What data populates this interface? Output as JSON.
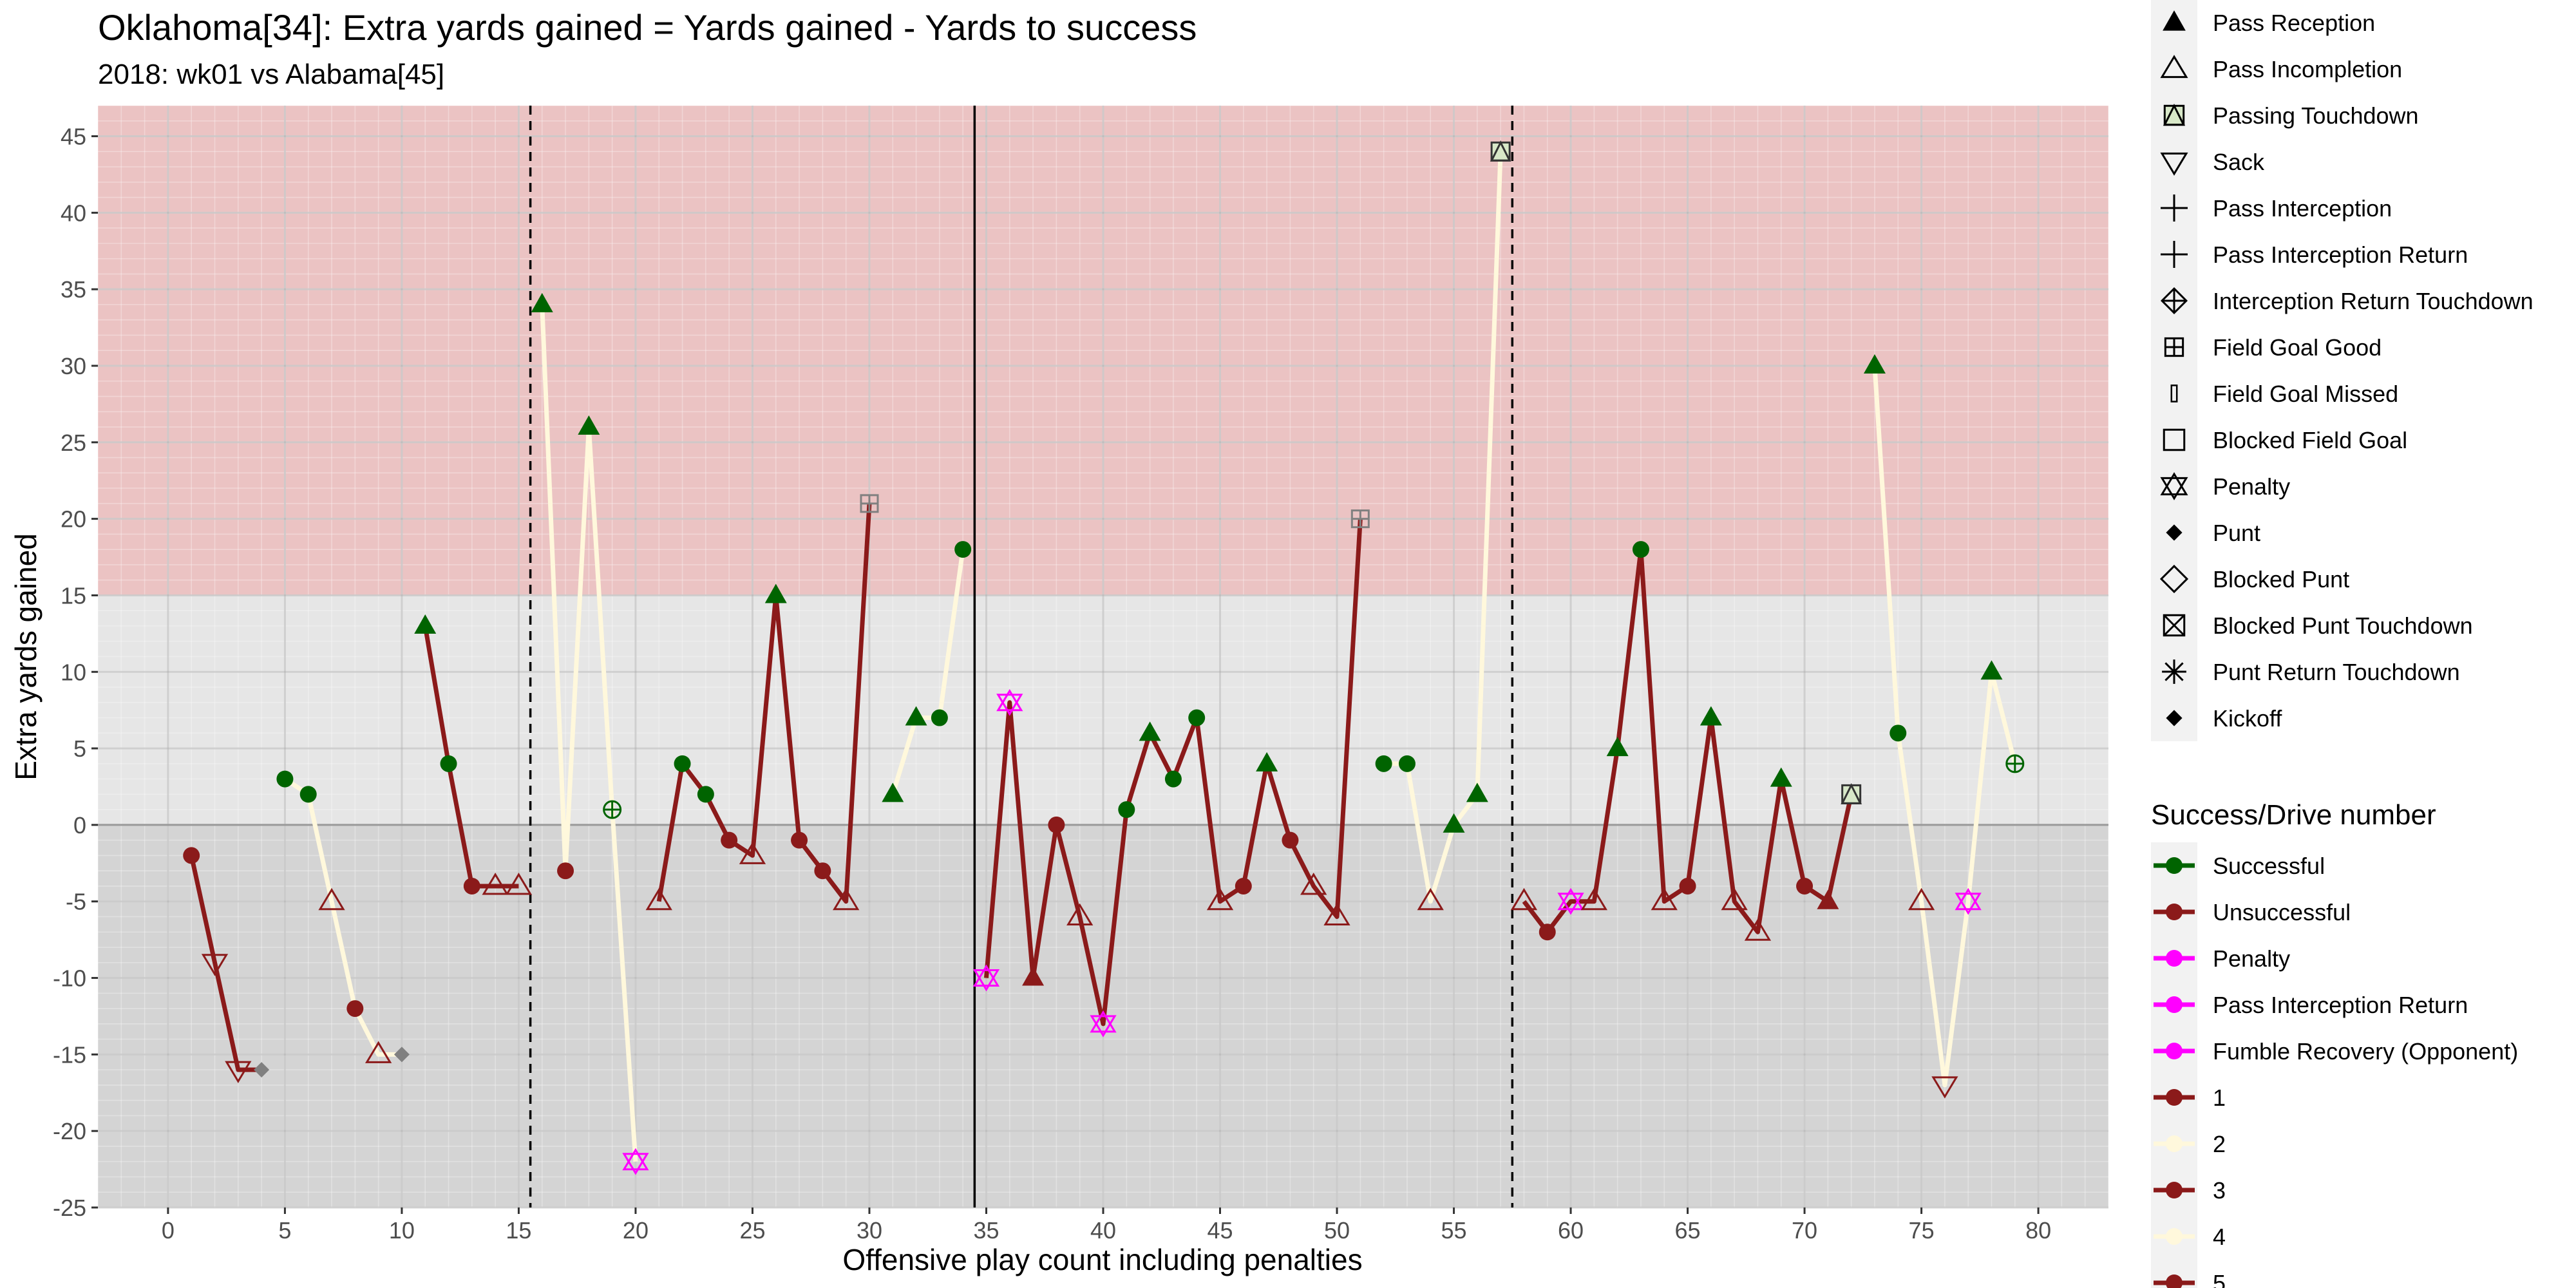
{
  "chart_data": {
    "type": "scatter",
    "title": "Oklahoma[34]: Extra yards gained = Yards gained - Yards to success",
    "subtitle": "2018: wk01 vs Alabama[45]",
    "xlabel": "Offensive play count including penalties",
    "ylabel": "Extra yards gained",
    "xlim": [
      -3,
      83
    ],
    "ylim": [
      -25,
      47
    ],
    "x_ticks": [
      0,
      5,
      10,
      15,
      20,
      25,
      30,
      35,
      40,
      45,
      50,
      55,
      60,
      65,
      70,
      75,
      80
    ],
    "y_ticks": [
      -25,
      -20,
      -15,
      -10,
      -5,
      0,
      5,
      10,
      15,
      20,
      25,
      30,
      35,
      40,
      45
    ],
    "bands": [
      {
        "from": 15,
        "to": 47,
        "color": "#ebc3c3"
      },
      {
        "from": 0,
        "to": 15,
        "color": "#e6e6e6"
      },
      {
        "from": -25,
        "to": 0,
        "color": "#d4d4d4"
      }
    ],
    "vlines": [
      {
        "x": 15.5,
        "style": "dashed"
      },
      {
        "x": 34.5,
        "style": "solid"
      },
      {
        "x": 57.5,
        "style": "dashed"
      }
    ],
    "drive_colors": {
      "odd": "#8b1a1a",
      "even": "#fff8dc"
    },
    "outcome_colors": {
      "Successful": "#006400",
      "Unsuccessful": "#8b1a1a",
      "Penalty": "#ff00ff",
      "Neutral": "#808080"
    },
    "drives": [
      {
        "drive": 1,
        "points": [
          [
            1,
            -2,
            "point",
            "Unsuccessful"
          ],
          [
            2,
            -9,
            "sack",
            "Unsuccessful"
          ],
          [
            3,
            -16,
            "sack",
            "Unsuccessful"
          ],
          [
            4,
            -16,
            "kickoff",
            "Neutral"
          ]
        ]
      },
      {
        "drive": 2,
        "points": [
          [
            5,
            3,
            "point",
            "Successful"
          ],
          [
            6,
            2,
            "point",
            "Successful"
          ],
          [
            7,
            -5,
            "pass_incompletion",
            "Unsuccessful"
          ],
          [
            8,
            -12,
            "point",
            "Unsuccessful"
          ],
          [
            9,
            -15,
            "pass_incompletion",
            "Unsuccessful"
          ],
          [
            10,
            -15,
            "kickoff",
            "Neutral"
          ]
        ]
      },
      {
        "drive": 3,
        "points": [
          [
            11,
            13,
            "pass_reception",
            "Successful"
          ],
          [
            12,
            4,
            "point",
            "Successful"
          ],
          [
            13,
            -4,
            "point",
            "Unsuccessful"
          ],
          [
            14,
            -4,
            "pass_incompletion",
            "Unsuccessful"
          ],
          [
            15,
            -4,
            "pass_incompletion",
            "Unsuccessful"
          ]
        ]
      },
      {
        "drive": 4,
        "points": [
          [
            16,
            34,
            "pass_reception",
            "Successful"
          ],
          [
            17,
            -3,
            "point",
            "Unsuccessful"
          ],
          [
            18,
            26,
            "pass_reception",
            "Successful"
          ],
          [
            19,
            1,
            "interception_return_td",
            "Successful"
          ],
          [
            20,
            -22,
            "penalty",
            "Penalty"
          ]
        ]
      },
      {
        "drive": 5,
        "points": [
          [
            21,
            -5,
            "pass_incompletion",
            "Unsuccessful"
          ],
          [
            22,
            4,
            "point",
            "Successful"
          ],
          [
            23,
            2,
            "point",
            "Successful"
          ],
          [
            24,
            -1,
            "point",
            "Unsuccessful"
          ],
          [
            25,
            -2,
            "pass_incompletion",
            "Unsuccessful"
          ],
          [
            26,
            15,
            "pass_reception",
            "Successful"
          ],
          [
            27,
            -1,
            "point",
            "Unsuccessful"
          ],
          [
            28,
            -3,
            "point",
            "Unsuccessful"
          ],
          [
            29,
            -5,
            "pass_incompletion",
            "Unsuccessful"
          ],
          [
            30,
            21,
            "field_goal_good",
            "Neutral"
          ]
        ]
      },
      {
        "drive": 6,
        "points": [
          [
            31,
            2,
            "pass_reception",
            "Successful"
          ],
          [
            32,
            7,
            "pass_reception",
            "Successful"
          ],
          [
            33,
            7,
            "point",
            "Successful"
          ],
          [
            34,
            18,
            "point",
            "Successful"
          ]
        ]
      },
      {
        "drive": 7,
        "points": [
          [
            35,
            -10,
            "penalty",
            "Penalty"
          ],
          [
            36,
            8,
            "penalty",
            "Penalty"
          ],
          [
            37,
            -10,
            "pass_reception",
            "Unsuccessful"
          ],
          [
            38,
            0,
            "point",
            "Unsuccessful"
          ],
          [
            39,
            -6,
            "pass_incompletion",
            "Unsuccessful"
          ],
          [
            40,
            -13,
            "penalty",
            "Penalty"
          ],
          [
            41,
            1,
            "point",
            "Successful"
          ],
          [
            42,
            6,
            "pass_reception",
            "Successful"
          ],
          [
            43,
            3,
            "point",
            "Successful"
          ],
          [
            44,
            7,
            "point",
            "Successful"
          ],
          [
            45,
            -5,
            "pass_incompletion",
            "Unsuccessful"
          ],
          [
            46,
            -4,
            "point",
            "Unsuccessful"
          ],
          [
            47,
            4,
            "pass_reception",
            "Successful"
          ],
          [
            48,
            -1,
            "point",
            "Unsuccessful"
          ],
          [
            49,
            -4,
            "pass_incompletion",
            "Unsuccessful"
          ],
          [
            50,
            -6,
            "pass_incompletion",
            "Unsuccessful"
          ],
          [
            51,
            20,
            "field_goal_good",
            "Neutral"
          ]
        ]
      },
      {
        "drive": 8,
        "points": [
          [
            52,
            4,
            "point",
            "Successful"
          ],
          [
            53,
            4,
            "point",
            "Successful"
          ],
          [
            54,
            -5,
            "pass_incompletion",
            "Unsuccessful"
          ],
          [
            55,
            0,
            "pass_reception",
            "Successful"
          ],
          [
            56,
            2,
            "pass_reception",
            "Successful"
          ],
          [
            57,
            44,
            "passing_touchdown",
            "Successful"
          ]
        ]
      },
      {
        "drive": 9,
        "points": [
          [
            58,
            -5,
            "pass_incompletion",
            "Unsuccessful"
          ],
          [
            59,
            -7,
            "point",
            "Unsuccessful"
          ],
          [
            60,
            -5,
            "penalty",
            "Penalty"
          ],
          [
            61,
            -5,
            "pass_incompletion",
            "Unsuccessful"
          ],
          [
            62,
            5,
            "pass_reception",
            "Successful"
          ],
          [
            63,
            18,
            "point",
            "Successful"
          ],
          [
            64,
            -5,
            "pass_incompletion",
            "Unsuccessful"
          ],
          [
            65,
            -4,
            "point",
            "Unsuccessful"
          ],
          [
            66,
            7,
            "pass_reception",
            "Successful"
          ],
          [
            67,
            -5,
            "pass_incompletion",
            "Unsuccessful"
          ],
          [
            68,
            -7,
            "pass_incompletion",
            "Unsuccessful"
          ],
          [
            69,
            3,
            "pass_reception",
            "Successful"
          ],
          [
            70,
            -4,
            "point",
            "Unsuccessful"
          ],
          [
            71,
            -5,
            "pass_reception",
            "Unsuccessful"
          ],
          [
            72,
            2,
            "passing_touchdown",
            "Successful"
          ]
        ]
      },
      {
        "drive": 10,
        "points": [
          [
            73,
            30,
            "pass_reception",
            "Successful"
          ],
          [
            74,
            6,
            "point",
            "Successful"
          ],
          [
            75,
            -5,
            "pass_incompletion",
            "Unsuccessful"
          ],
          [
            76,
            -17,
            "sack",
            "Unsuccessful"
          ],
          [
            77,
            -5,
            "penalty",
            "Penalty"
          ],
          [
            78,
            10,
            "pass_reception",
            "Successful"
          ],
          [
            79,
            4,
            "interception_return_td",
            "Successful"
          ]
        ]
      }
    ],
    "legend_shapes": [
      {
        "label": "Pass Reception",
        "shape": "pass_reception"
      },
      {
        "label": "Pass Incompletion",
        "shape": "pass_incompletion"
      },
      {
        "label": "Passing Touchdown",
        "shape": "passing_touchdown"
      },
      {
        "label": "Sack",
        "shape": "sack"
      },
      {
        "label": "Pass Interception",
        "shape": "pass_interception"
      },
      {
        "label": "Pass Interception Return",
        "shape": "pass_interception"
      },
      {
        "label": "Interception Return Touchdown",
        "shape": "interception_return_td_legend"
      },
      {
        "label": "Field Goal Good",
        "shape": "field_goal_good"
      },
      {
        "label": "Field Goal Missed",
        "shape": "field_goal_missed"
      },
      {
        "label": "Blocked Field Goal",
        "shape": "blocked_field_goal"
      },
      {
        "label": "Penalty",
        "shape": "penalty"
      },
      {
        "label": "Punt",
        "shape": "kickoff"
      },
      {
        "label": "Blocked Punt",
        "shape": "blocked_punt"
      },
      {
        "label": "Blocked Punt Touchdown",
        "shape": "blocked_punt_td"
      },
      {
        "label": "Punt Return Touchdown",
        "shape": "punt_return_td"
      },
      {
        "label": "Kickoff",
        "shape": "kickoff"
      }
    ],
    "legend_color_title": "Success/Drive number",
    "legend_colors": [
      {
        "label": "Successful",
        "color": "#006400"
      },
      {
        "label": "Unsuccessful",
        "color": "#8b1a1a"
      },
      {
        "label": "Penalty",
        "color": "#ff00ff"
      },
      {
        "label": "Pass Interception Return",
        "color": "#ff00ff"
      },
      {
        "label": "Fumble Recovery (Opponent)",
        "color": "#ff00ff"
      },
      {
        "label": "1",
        "color": "#8b1a1a"
      },
      {
        "label": "2",
        "color": "#fff8dc"
      },
      {
        "label": "3",
        "color": "#8b1a1a"
      },
      {
        "label": "4",
        "color": "#fff8dc"
      },
      {
        "label": "5",
        "color": "#8b1a1a"
      }
    ]
  }
}
